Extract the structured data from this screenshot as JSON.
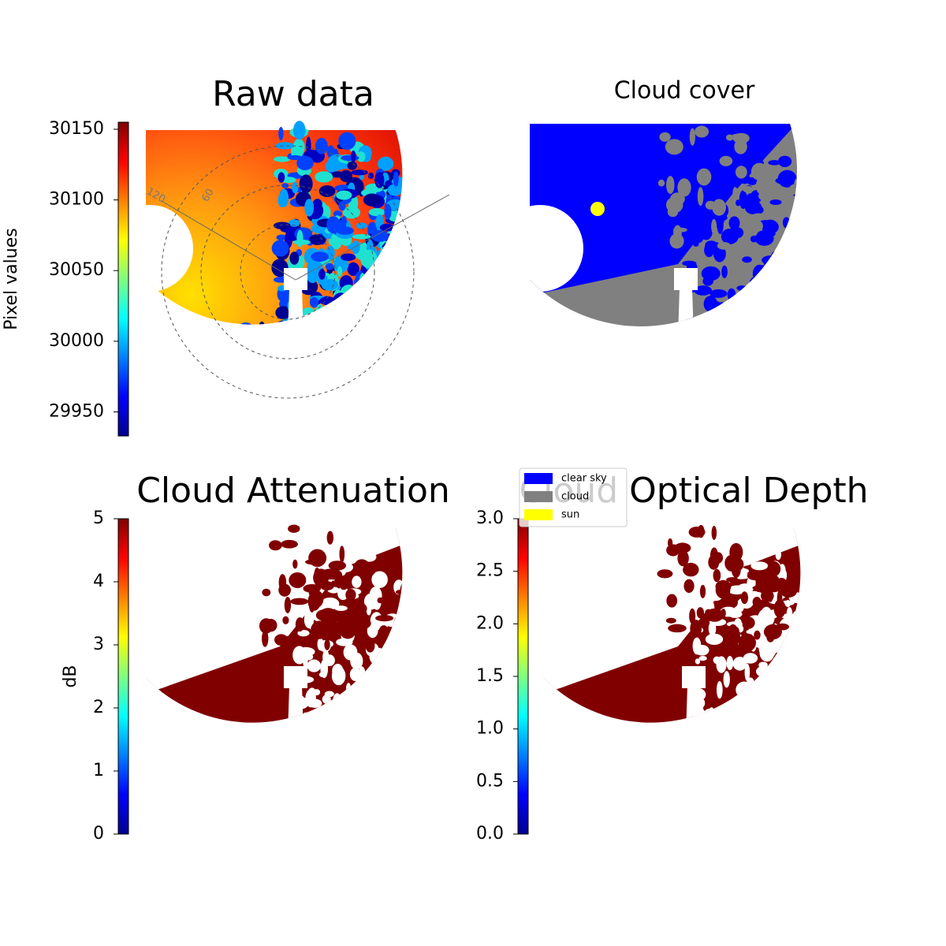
{
  "chart_data": [
    {
      "type": "image",
      "title": "Raw data",
      "colorbar_label": "Pixel values",
      "colormap": "jet",
      "clim": [
        29933,
        30155
      ],
      "cticks": [
        29950,
        30000,
        30050,
        30100,
        30150
      ],
      "polar_labels": [
        "120",
        "60"
      ]
    },
    {
      "type": "classes",
      "title": "Cloud cover",
      "series": [
        {
          "name": "clear sky",
          "color": "#0000ff"
        },
        {
          "name": "cloud",
          "color": "#808080"
        },
        {
          "name": "sun",
          "color": "#ffff00"
        }
      ]
    },
    {
      "type": "image",
      "title": "Cloud Attenuation",
      "colorbar_label": "dB",
      "colormap": "jet",
      "clim": [
        0,
        5
      ],
      "cticks": [
        0,
        1,
        2,
        3,
        4,
        5
      ]
    },
    {
      "type": "image",
      "title": "Cloud Optical Depth",
      "colormap": "jet",
      "clim": [
        0,
        3
      ],
      "cticks": [
        {
          "value": 0,
          "label": "0.0"
        },
        {
          "value": 0.5,
          "label": "0.5"
        },
        {
          "value": 1,
          "label": "1.0"
        },
        {
          "value": 1.5,
          "label": "1.5"
        },
        {
          "value": 2,
          "label": "2.0"
        },
        {
          "value": 2.5,
          "label": "2.5"
        },
        {
          "value": 3,
          "label": "3.0"
        }
      ]
    }
  ]
}
